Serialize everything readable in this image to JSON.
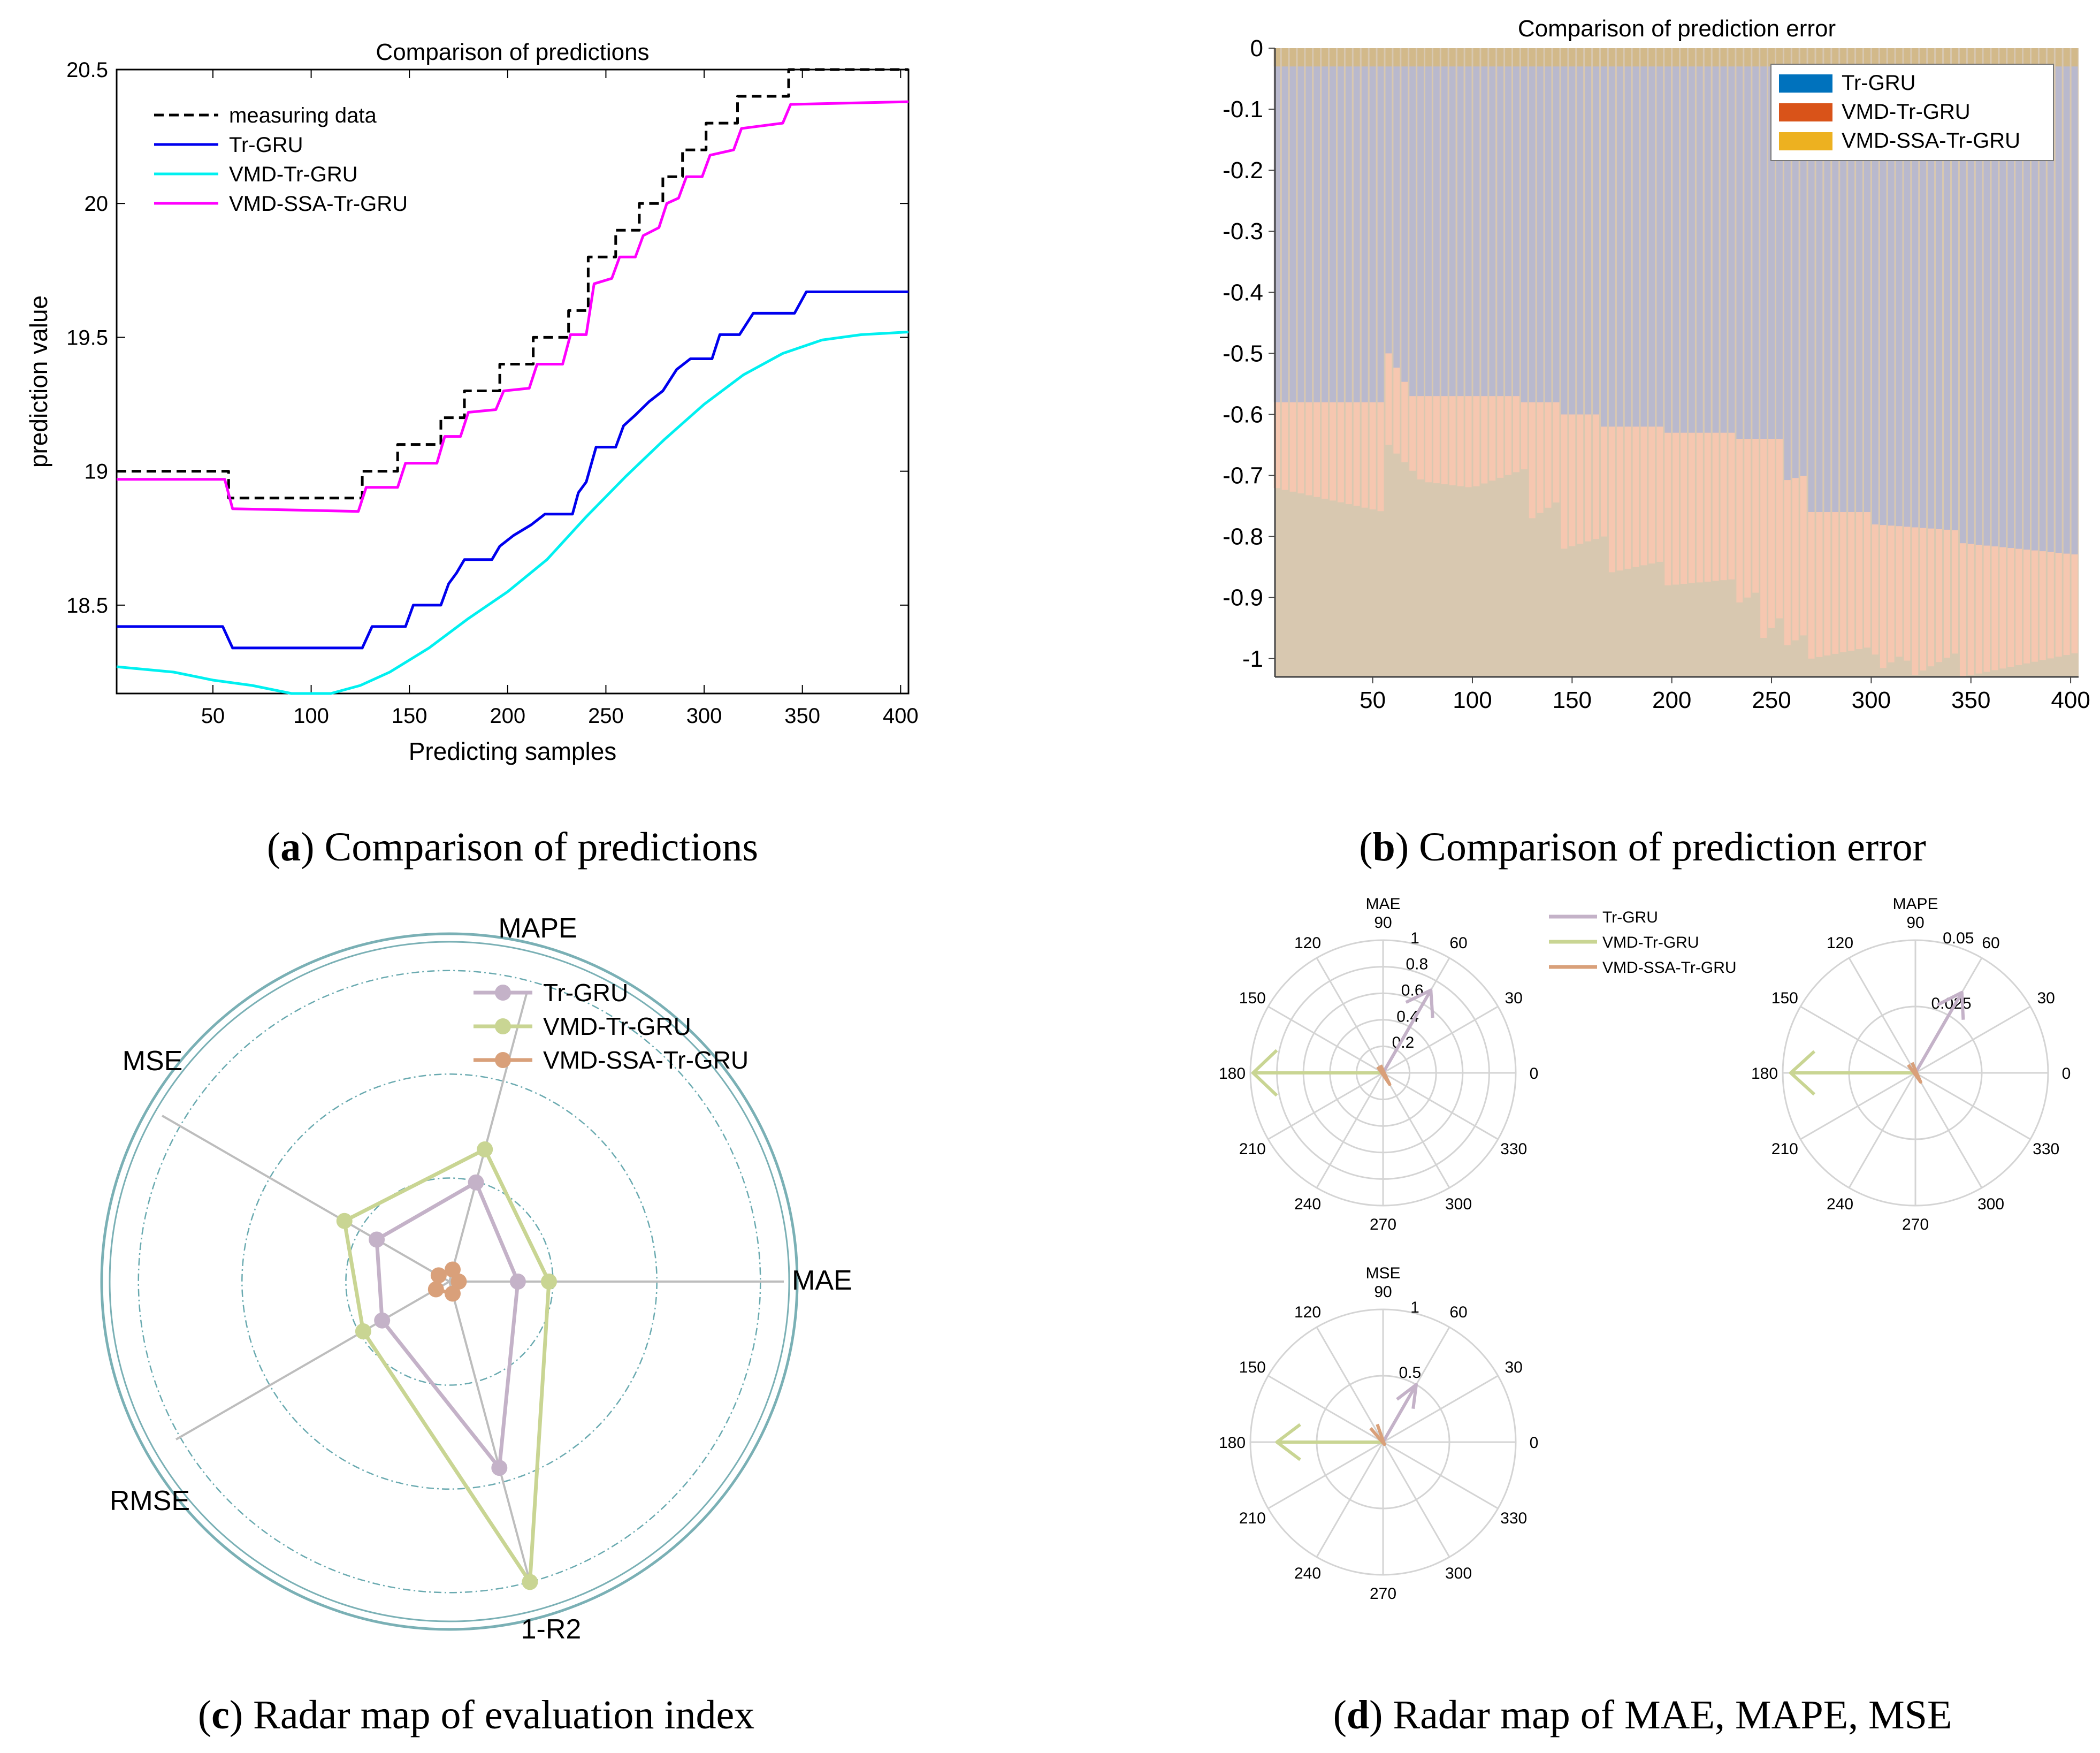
{
  "captions": {
    "a_letter": "a",
    "a_text": ") Comparison of predictions",
    "b_letter": "b",
    "b_text": ") Comparison of prediction error",
    "c_letter": "c",
    "c_text": ") Radar map of evaluation index",
    "d_letter": "d",
    "d_text": ") Radar map of MAE, MAPE, MSE"
  },
  "chart_data": [
    {
      "id": "a",
      "type": "line",
      "title": "Comparison of predictions",
      "xlabel": "Predicting samples",
      "ylabel": "prediction value",
      "xlim": [
        1,
        404
      ],
      "ylim": [
        18.17,
        20.5
      ],
      "xticks": [
        "50",
        "100",
        "150",
        "200",
        "250",
        "300",
        "350",
        "400"
      ],
      "yticks": [
        "18.5",
        "19",
        "19.5",
        "20",
        "20.5"
      ],
      "legend": "top-left",
      "series": [
        {
          "name": "measuring data",
          "color": "#000000",
          "style": "dashed",
          "points": [
            [
              1,
              19.0
            ],
            [
              58,
              19.0
            ],
            [
              58,
              18.9
            ],
            [
              126,
              18.9
            ],
            [
              126,
              19.0
            ],
            [
              144,
              19.0
            ],
            [
              144,
              19.1
            ],
            [
              166,
              19.1
            ],
            [
              166,
              19.2
            ],
            [
              178,
              19.2
            ],
            [
              178,
              19.3
            ],
            [
              196,
              19.3
            ],
            [
              196,
              19.4
            ],
            [
              213,
              19.4
            ],
            [
              213,
              19.5
            ],
            [
              231,
              19.5
            ],
            [
              231,
              19.6
            ],
            [
              241,
              19.6
            ],
            [
              241,
              19.8
            ],
            [
              255,
              19.8
            ],
            [
              255,
              19.9
            ],
            [
              267,
              19.9
            ],
            [
              267,
              20.0
            ],
            [
              279,
              20.0
            ],
            [
              279,
              20.1
            ],
            [
              289,
              20.1
            ],
            [
              289,
              20.2
            ],
            [
              301,
              20.2
            ],
            [
              301,
              20.3
            ],
            [
              317,
              20.3
            ],
            [
              317,
              20.4
            ],
            [
              343,
              20.4
            ],
            [
              343,
              20.5
            ],
            [
              404,
              20.5
            ]
          ]
        },
        {
          "name": "Tr-GRU",
          "color": "#0000ee",
          "style": "solid",
          "points": [
            [
              1,
              18.42
            ],
            [
              55,
              18.42
            ],
            [
              60,
              18.34
            ],
            [
              126,
              18.34
            ],
            [
              131,
              18.42
            ],
            [
              148,
              18.42
            ],
            [
              152,
              18.5
            ],
            [
              166,
              18.5
            ],
            [
              170,
              18.58
            ],
            [
              174,
              18.62
            ],
            [
              178,
              18.67
            ],
            [
              192,
              18.67
            ],
            [
              196,
              18.72
            ],
            [
              203,
              18.76
            ],
            [
              212,
              18.8
            ],
            [
              219,
              18.84
            ],
            [
              233,
              18.84
            ],
            [
              236,
              18.92
            ],
            [
              240,
              18.96
            ],
            [
              245,
              19.09
            ],
            [
              255,
              19.09
            ],
            [
              259,
              19.17
            ],
            [
              265,
              19.21
            ],
            [
              272,
              19.26
            ],
            [
              279,
              19.3
            ],
            [
              286,
              19.38
            ],
            [
              293,
              19.42
            ],
            [
              304,
              19.42
            ],
            [
              308,
              19.51
            ],
            [
              318,
              19.51
            ],
            [
              325,
              19.59
            ],
            [
              346,
              19.59
            ],
            [
              352,
              19.67
            ],
            [
              404,
              19.67
            ]
          ]
        },
        {
          "name": "VMD-Tr-GRU",
          "color": "#00f0f0",
          "style": "solid",
          "points": [
            [
              1,
              18.27
            ],
            [
              30,
              18.25
            ],
            [
              50,
              18.22
            ],
            [
              70,
              18.2
            ],
            [
              90,
              18.17
            ],
            [
              110,
              18.17
            ],
            [
              125,
              18.2
            ],
            [
              140,
              18.25
            ],
            [
              160,
              18.34
            ],
            [
              180,
              18.45
            ],
            [
              200,
              18.55
            ],
            [
              220,
              18.67
            ],
            [
              240,
              18.83
            ],
            [
              260,
              18.98
            ],
            [
              280,
              19.12
            ],
            [
              300,
              19.25
            ],
            [
              320,
              19.36
            ],
            [
              340,
              19.44
            ],
            [
              360,
              19.49
            ],
            [
              380,
              19.51
            ],
            [
              404,
              19.52
            ]
          ]
        },
        {
          "name": "VMD-SSA-Tr-GRU",
          "color": "#ff00ff",
          "style": "solid",
          "points": [
            [
              1,
              18.97
            ],
            [
              56,
              18.97
            ],
            [
              60,
              18.86
            ],
            [
              124,
              18.85
            ],
            [
              128,
              18.94
            ],
            [
              144,
              18.94
            ],
            [
              148,
              19.03
            ],
            [
              164,
              19.03
            ],
            [
              168,
              19.13
            ],
            [
              176,
              19.13
            ],
            [
              180,
              19.22
            ],
            [
              194,
              19.23
            ],
            [
              198,
              19.3
            ],
            [
              211,
              19.31
            ],
            [
              215,
              19.4
            ],
            [
              228,
              19.4
            ],
            [
              232,
              19.51
            ],
            [
              240,
              19.51
            ],
            [
              244,
              19.7
            ],
            [
              253,
              19.72
            ],
            [
              257,
              19.8
            ],
            [
              265,
              19.8
            ],
            [
              269,
              19.88
            ],
            [
              277,
              19.91
            ],
            [
              281,
              20.0
            ],
            [
              287,
              20.02
            ],
            [
              291,
              20.1
            ],
            [
              299,
              20.1
            ],
            [
              303,
              20.18
            ],
            [
              315,
              20.2
            ],
            [
              319,
              20.28
            ],
            [
              340,
              20.3
            ],
            [
              344,
              20.37
            ],
            [
              404,
              20.38
            ]
          ]
        }
      ]
    },
    {
      "id": "b",
      "type": "bar",
      "title": "Comparison of prediction error",
      "xlim": [
        1,
        404
      ],
      "ylim": [
        -1.03,
        0
      ],
      "xticks": [
        "50",
        "100",
        "150",
        "200",
        "250",
        "300",
        "350",
        "400"
      ],
      "yticks": [
        "0",
        "-0.1",
        "-0.2",
        "-0.3",
        "-0.4",
        "-0.5",
        "-0.6",
        "-0.7",
        "-0.8",
        "-0.9",
        "-1"
      ],
      "legend": "top-right",
      "series": [
        {
          "name": "Tr-GRU",
          "color": "#0072bd"
        },
        {
          "name": "VMD-Tr-GRU",
          "color": "#d95319"
        },
        {
          "name": "VMD-SSA-Tr-GRU",
          "color": "#edb120"
        }
      ],
      "tr_gru_error_curve": [
        [
          1,
          -0.58
        ],
        [
          58,
          -0.58
        ],
        [
          58,
          -0.5
        ],
        [
          70,
          -0.57
        ],
        [
          126,
          -0.57
        ],
        [
          126,
          -0.58
        ],
        [
          144,
          -0.58
        ],
        [
          144,
          -0.6
        ],
        [
          166,
          -0.6
        ],
        [
          166,
          -0.62
        ],
        [
          196,
          -0.62
        ],
        [
          196,
          -0.63
        ],
        [
          231,
          -0.63
        ],
        [
          231,
          -0.64
        ],
        [
          255,
          -0.64
        ],
        [
          255,
          -0.71
        ],
        [
          267,
          -0.7
        ],
        [
          267,
          -0.76
        ],
        [
          301,
          -0.76
        ],
        [
          301,
          -0.78
        ],
        [
          343,
          -0.79
        ],
        [
          343,
          -0.81
        ],
        [
          404,
          -0.83
        ]
      ],
      "vmd_tr_gru_error_curve": [
        [
          1,
          -0.72
        ],
        [
          56,
          -0.76
        ],
        [
          58,
          -0.65
        ],
        [
          75,
          -0.71
        ],
        [
          100,
          -0.72
        ],
        [
          126,
          -0.69
        ],
        [
          130,
          -0.77
        ],
        [
          144,
          -0.74
        ],
        [
          146,
          -0.82
        ],
        [
          166,
          -0.8
        ],
        [
          168,
          -0.86
        ],
        [
          196,
          -0.84
        ],
        [
          198,
          -0.88
        ],
        [
          231,
          -0.87
        ],
        [
          233,
          -0.91
        ],
        [
          243,
          -0.89
        ],
        [
          245,
          -0.97
        ],
        [
          255,
          -0.93
        ],
        [
          257,
          -0.98
        ],
        [
          267,
          -0.96
        ],
        [
          270,
          -1.0
        ],
        [
          301,
          -0.98
        ],
        [
          304,
          -1.02
        ],
        [
          317,
          -0.99
        ],
        [
          320,
          -1.03
        ],
        [
          343,
          -0.99
        ],
        [
          346,
          -1.03
        ],
        [
          404,
          -0.99
        ]
      ],
      "vmd_ssa_tr_gru_error": -0.03
    },
    {
      "id": "c",
      "type": "radar",
      "axes": [
        "MAPE",
        "MAE",
        "1-R2",
        "RMSE",
        "MSE"
      ],
      "series": [
        {
          "name": "Tr-GRU",
          "color": "#c4b2c8",
          "values": [
            0.33,
            0.22,
            0.62,
            0.25,
            0.27
          ]
        },
        {
          "name": "VMD-Tr-GRU",
          "color": "#c9d593",
          "values": [
            0.44,
            0.32,
            1.0,
            0.32,
            0.39
          ]
        },
        {
          "name": "VMD-SSA-Tr-GRU",
          "color": "#d9a07a",
          "values": [
            0.04,
            0.03,
            0.04,
            0.05,
            0.04
          ]
        }
      ],
      "rings": [
        0.333,
        0.667,
        1.0
      ]
    },
    {
      "id": "d",
      "type": "polar-compass",
      "legend": [
        "Tr-GRU",
        "VMD-Tr-GRU",
        "VMD-SSA-Tr-GRU"
      ],
      "colors": [
        "#c4b2c8",
        "#c9d593",
        "#d9a07a"
      ],
      "angle_labels": [
        "90",
        "60",
        "30",
        "0",
        "330",
        "300",
        "270",
        "240",
        "210",
        "180",
        "150",
        "120"
      ],
      "plots": [
        {
          "title": "MAE",
          "rmax": 1,
          "radial_labels": [
            "1",
            "0.8",
            "0.6",
            "0.4",
            "0.2"
          ],
          "radial_values": [
            1,
            0.8,
            0.6,
            0.4,
            0.2
          ],
          "arrows": [
            {
              "series": "Tr-GRU",
              "angle": 60,
              "r": 0.72
            },
            {
              "series": "VMD-Tr-GRU",
              "angle": 180,
              "r": 0.98
            },
            {
              "series": "VMD-SSA-Tr-GRU",
              "angle": 300,
              "r": 0.1
            }
          ]
        },
        {
          "title": "MAPE",
          "rmax": 0.05,
          "radial_labels": [
            "0.05",
            "0.025"
          ],
          "radial_values": [
            0.05,
            0.025
          ],
          "arrows": [
            {
              "series": "Tr-GRU",
              "angle": 60,
              "r": 0.035
            },
            {
              "series": "VMD-Tr-GRU",
              "angle": 180,
              "r": 0.047
            },
            {
              "series": "VMD-SSA-Tr-GRU",
              "angle": 300,
              "r": 0.004
            }
          ]
        },
        {
          "title": "MSE",
          "rmax": 1,
          "radial_labels": [
            "1",
            "0.5"
          ],
          "radial_values": [
            1,
            0.5
          ],
          "arrows": [
            {
              "series": "Tr-GRU",
              "angle": 60,
              "r": 0.5
            },
            {
              "series": "VMD-Tr-GRU",
              "angle": 180,
              "r": 0.8
            },
            {
              "series": "VMD-SSA-Tr-GRU",
              "angle": 300,
              "r": 0.02
            }
          ]
        }
      ]
    }
  ]
}
